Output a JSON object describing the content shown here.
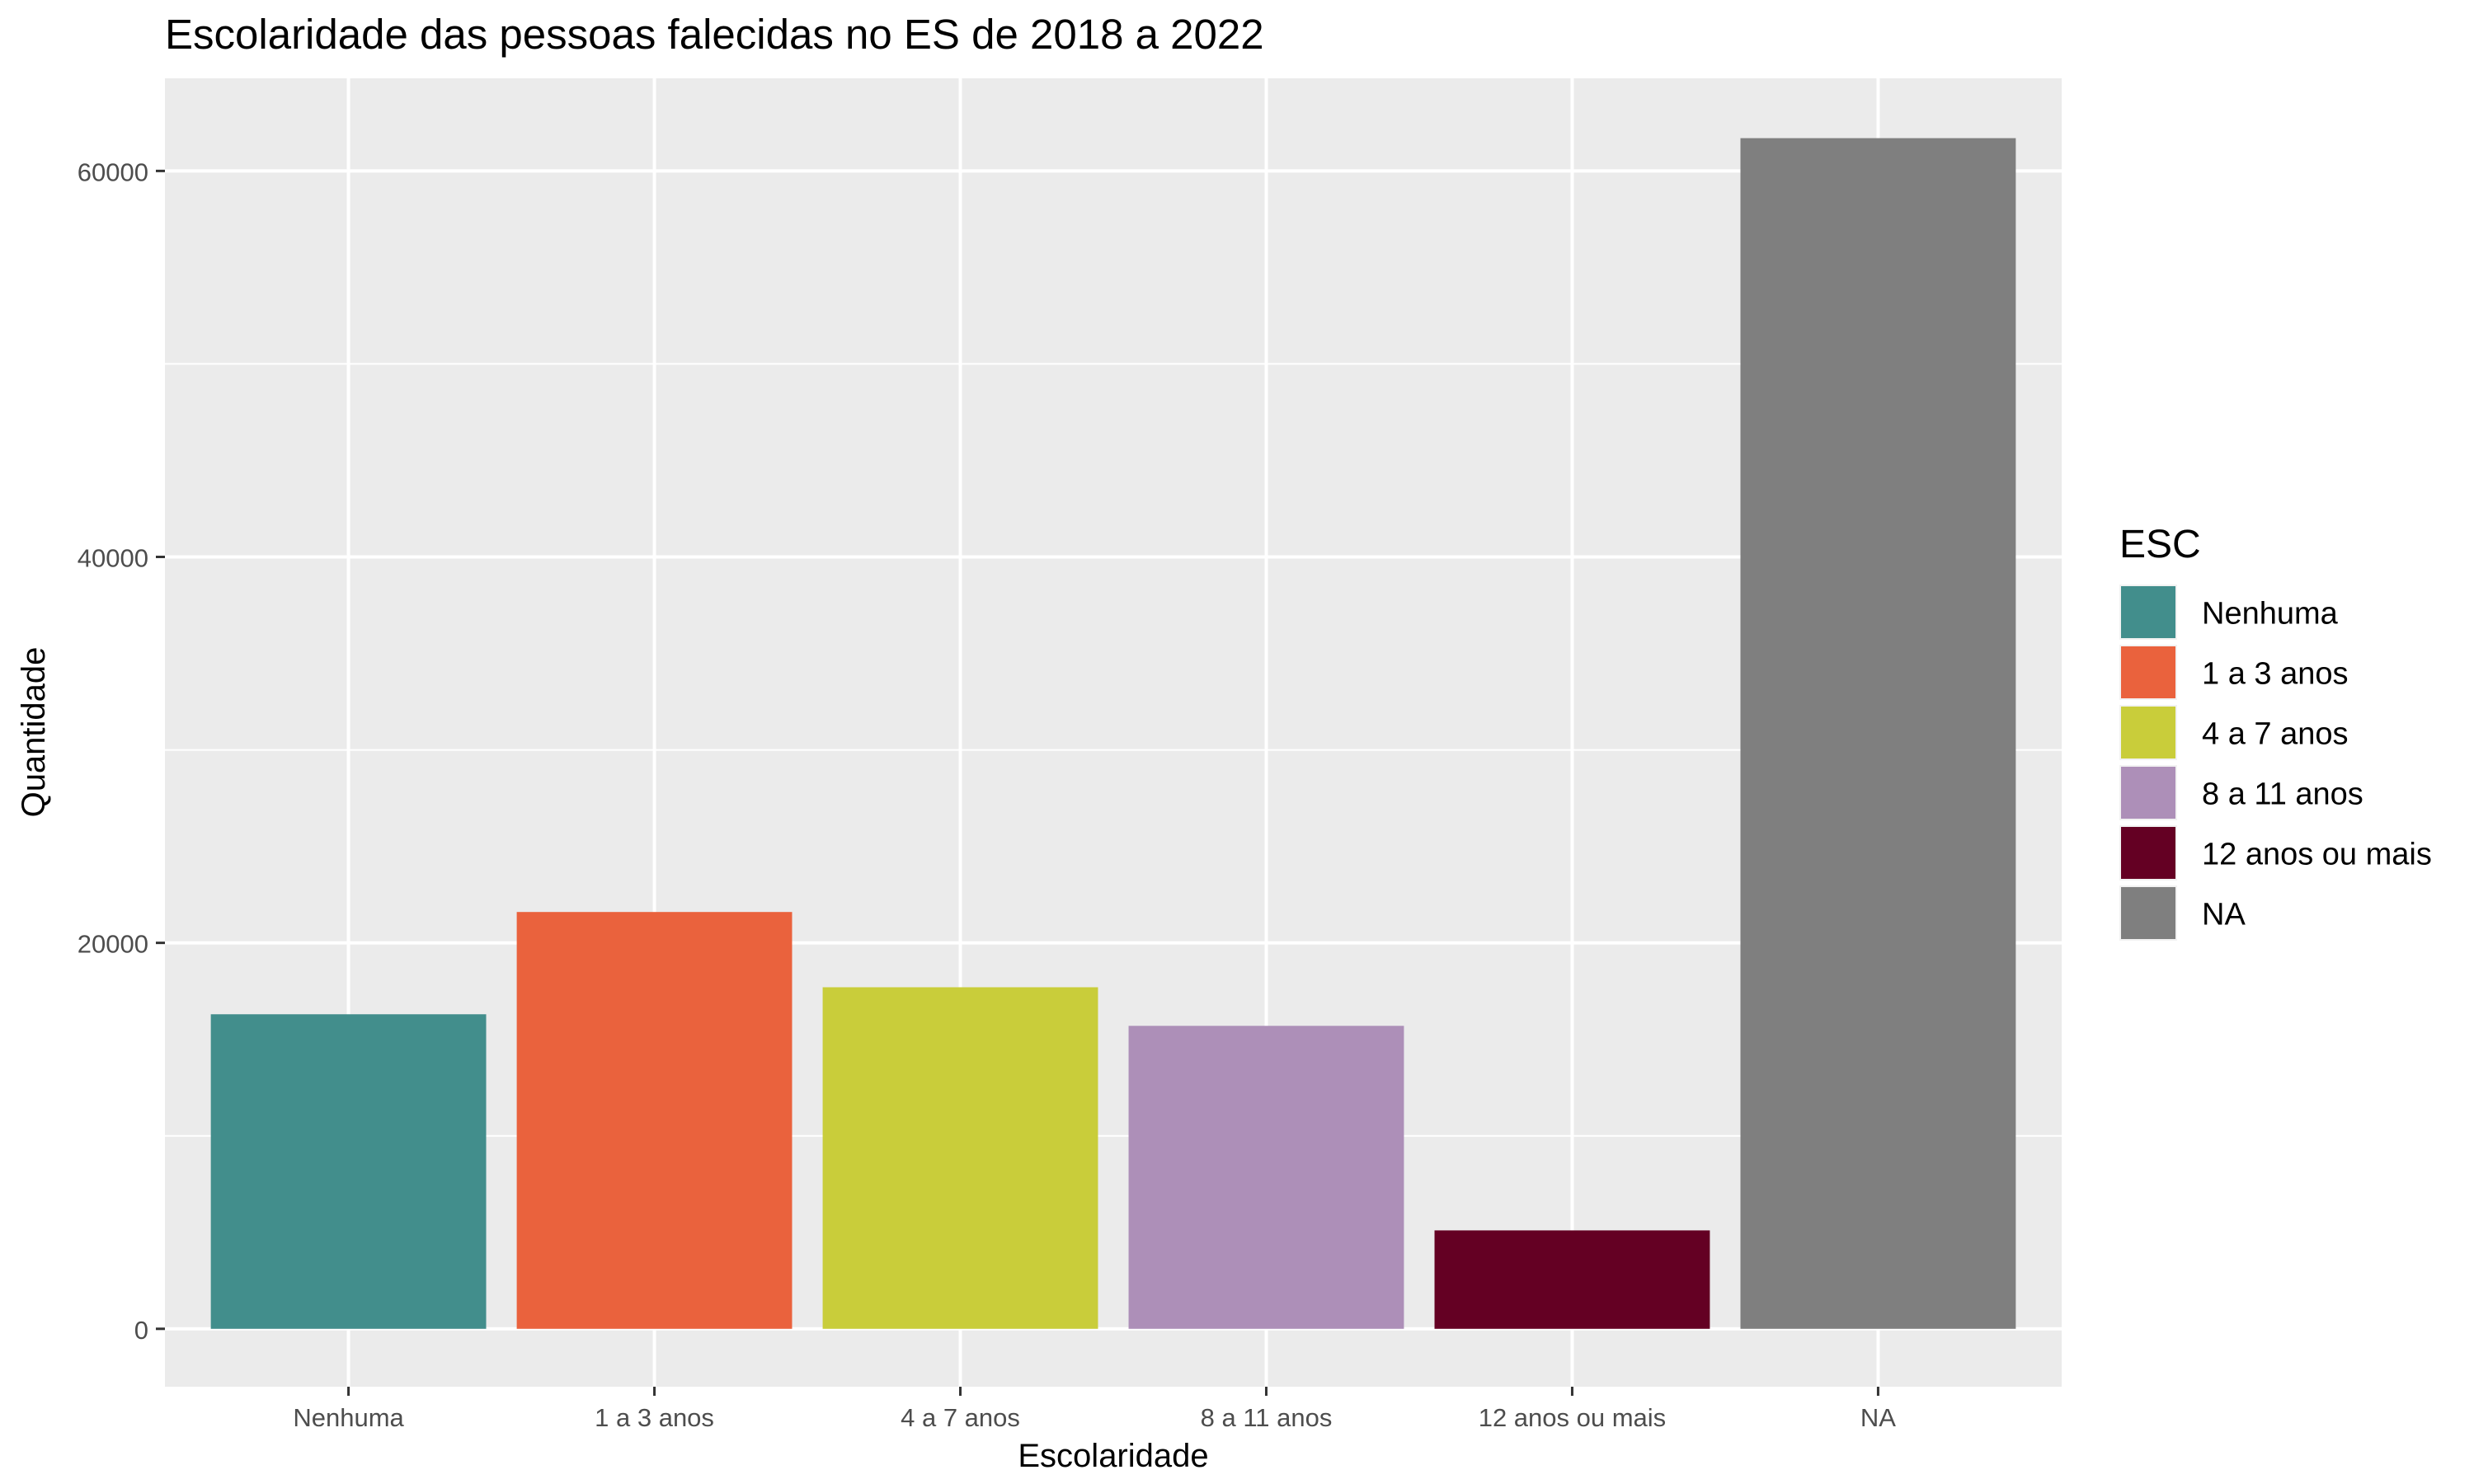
{
  "chart_data": {
    "type": "bar",
    "title": "Escolaridade das pessoas falecidas no ES de 2018 a 2022",
    "xlabel": "Escolaridade",
    "ylabel": "Quantidade",
    "categories": [
      "Nenhuma",
      "1 a 3 anos",
      "4 a 7 anos",
      "8 a 11 anos",
      "12 anos ou mais",
      "NA"
    ],
    "values": [
      16300,
      21600,
      17700,
      15700,
      5100,
      61700
    ],
    "colors": [
      "#428e8c",
      "#ea623d",
      "#c9cd3a",
      "#ad8fb8",
      "#640023",
      "#7f7f7f"
    ],
    "ylim": [
      -3000,
      64800
    ],
    "yticks": [
      0,
      20000,
      40000,
      60000
    ],
    "ytick_labels": [
      "0",
      "20000",
      "40000",
      "60000"
    ],
    "grid": true,
    "panel_background": "#ebebeb",
    "legend": {
      "title": "ESC",
      "position": "right",
      "entries": [
        "Nenhuma",
        "1 a 3 anos",
        "4 a 7 anos",
        "8 a 11 anos",
        "12 anos ou mais",
        "NA"
      ]
    }
  }
}
